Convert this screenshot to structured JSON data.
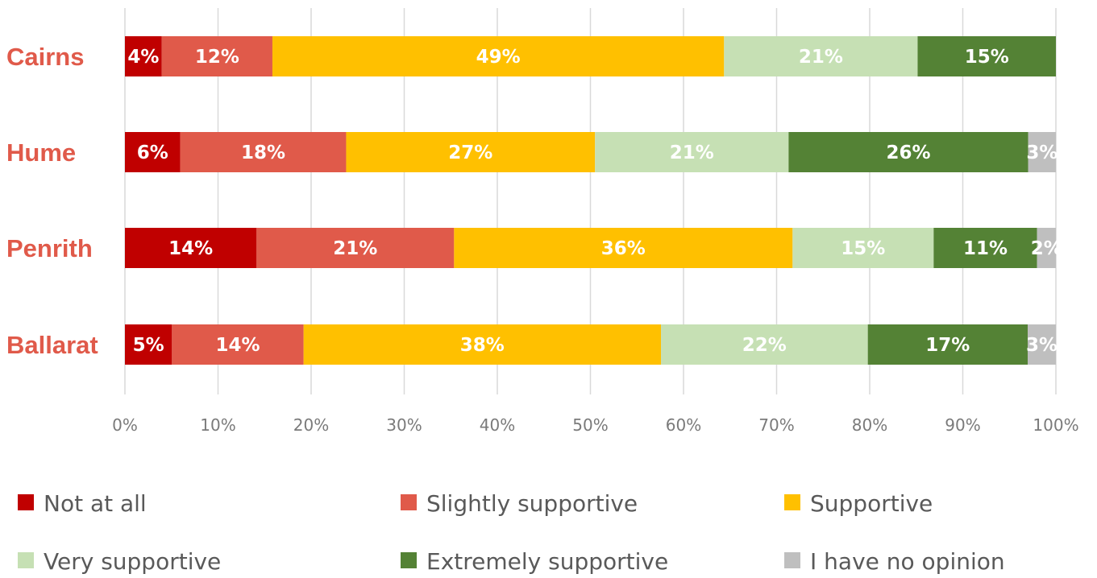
{
  "chart_data": {
    "type": "bar",
    "orientation": "horizontal",
    "stacked": true,
    "categories": [
      "Cairns",
      "Hume",
      "Penrith",
      "Ballarat"
    ],
    "series": [
      {
        "name": "Not at all",
        "color": "#c00000",
        "values": [
          4,
          6,
          14,
          5
        ],
        "labels": [
          "4%",
          "6%",
          "14%",
          "5%"
        ]
      },
      {
        "name": "Slightly supportive",
        "color": "#e05a4a",
        "values": [
          12,
          18,
          21,
          14
        ],
        "labels": [
          "12%",
          "18%",
          "21%",
          "14%"
        ]
      },
      {
        "name": "Supportive",
        "color": "#ffc000",
        "values": [
          49,
          27,
          36,
          38
        ],
        "labels": [
          "49%",
          "27%",
          "36%",
          "38%"
        ]
      },
      {
        "name": "Very supportive",
        "color": "#c6e0b4",
        "values": [
          21,
          21,
          15,
          22
        ],
        "labels": [
          "21%",
          "21%",
          "15%",
          "22%"
        ]
      },
      {
        "name": "Extremely supportive",
        "color": "#548235",
        "values": [
          15,
          26,
          11,
          17
        ],
        "labels": [
          "15%",
          "26%",
          "11%",
          "17%"
        ]
      },
      {
        "name": "I have no opinion",
        "color": "#bfbfbf",
        "values": [
          0,
          3,
          2,
          3
        ],
        "labels": [
          "",
          "3%",
          "2%",
          "3%"
        ]
      }
    ],
    "xlim": [
      0,
      100
    ],
    "xticks": [
      "0%",
      "10%",
      "20%",
      "30%",
      "40%",
      "50%",
      "60%",
      "70%",
      "80%",
      "90%",
      "100%"
    ],
    "category_label_color": "#e05a4a",
    "grid": "vertical",
    "legend_position": "bottom",
    "title": "",
    "xlabel": "",
    "ylabel": ""
  }
}
